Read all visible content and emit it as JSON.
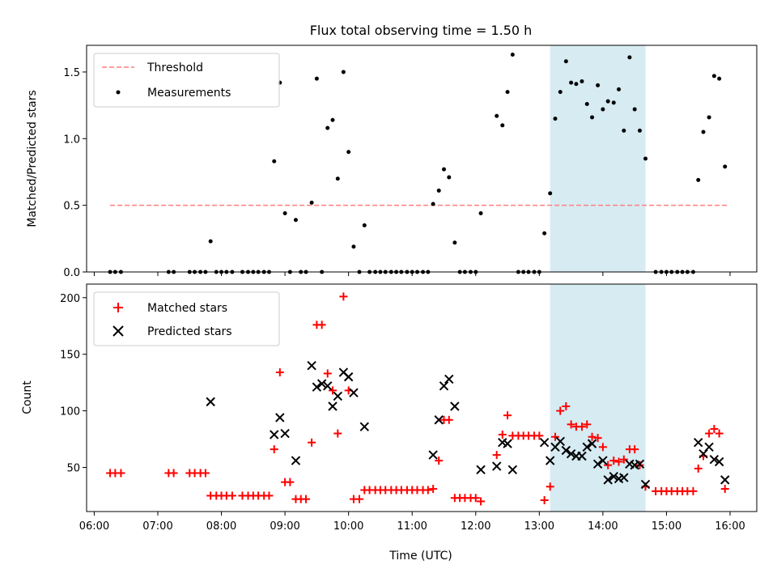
{
  "chart_data": [
    {
      "type": "scatter",
      "title": "Flux total observing time = 1.50 h",
      "ylabel": "Matched/Predicted stars",
      "xlabel": "",
      "x_unit": "hours_utc",
      "xlim": [
        5.88,
        16.42
      ],
      "ylim": [
        0,
        1.7
      ],
      "yticks": [
        0.0,
        0.5,
        1.0,
        1.5
      ],
      "ytick_labels": [
        "0.0",
        "0.5",
        "1.0",
        "1.5"
      ],
      "xticks": [
        6,
        7,
        8,
        9,
        10,
        11,
        12,
        13,
        14,
        15,
        16
      ],
      "xtick_labels": [
        "06:00",
        "07:00",
        "08:00",
        "09:00",
        "10:00",
        "11:00",
        "12:00",
        "13:00",
        "14:00",
        "15:00",
        "16:00"
      ],
      "show_xtick_labels": false,
      "highlight_span": [
        13.17,
        14.67
      ],
      "highlight_color": "#add8e6",
      "legend": {
        "placement": "upper-left",
        "entries": [
          "Threshold",
          "Measurements"
        ]
      },
      "series": [
        {
          "name": "Threshold",
          "style": "dashed-line",
          "color": "#ff7f7f",
          "x": [
            6.25,
            15.95
          ],
          "y": [
            0.5,
            0.5
          ]
        },
        {
          "name": "Measurements",
          "style": "dot",
          "color": "#000000",
          "x": [
            6.25,
            6.33,
            6.42,
            7.17,
            7.25,
            7.5,
            7.58,
            7.67,
            7.75,
            7.83,
            7.92,
            8.0,
            8.08,
            8.17,
            8.33,
            8.42,
            8.5,
            8.58,
            8.67,
            8.75,
            8.83,
            8.92,
            9.0,
            9.08,
            9.17,
            9.25,
            9.33,
            9.42,
            9.5,
            9.58,
            9.67,
            9.75,
            9.83,
            9.92,
            10.0,
            10.08,
            10.17,
            10.25,
            10.33,
            10.42,
            10.5,
            10.58,
            10.67,
            10.75,
            10.83,
            10.92,
            11.0,
            11.08,
            11.17,
            11.25,
            11.33,
            11.42,
            11.5,
            11.58,
            11.67,
            11.75,
            11.83,
            11.92,
            12.0,
            12.08,
            12.33,
            12.42,
            12.5,
            12.58,
            12.67,
            12.75,
            12.83,
            12.92,
            13.0,
            13.08,
            13.17,
            13.25,
            13.33,
            13.42,
            13.5,
            13.58,
            13.67,
            13.75,
            13.83,
            13.92,
            14.0,
            14.08,
            14.17,
            14.25,
            14.33,
            14.42,
            14.5,
            14.58,
            14.67,
            14.83,
            14.92,
            15.0,
            15.08,
            15.17,
            15.25,
            15.33,
            15.42,
            15.5,
            15.58,
            15.67,
            15.75,
            15.83,
            15.92
          ],
          "y": [
            0,
            0,
            0,
            0,
            0,
            0,
            0,
            0,
            0,
            0.23,
            0,
            0,
            0,
            0,
            0,
            0,
            0,
            0,
            0,
            0,
            0.83,
            1.42,
            0.44,
            0,
            0.39,
            0,
            0,
            0.52,
            1.45,
            0,
            1.08,
            1.14,
            0.7,
            1.5,
            0.9,
            0.19,
            0,
            0.35,
            0,
            0,
            0,
            0,
            0,
            0,
            0,
            0,
            0,
            0,
            0,
            0,
            0.51,
            0.61,
            0.77,
            0.71,
            0.22,
            0,
            0,
            0,
            0,
            0.44,
            1.17,
            1.1,
            1.35,
            1.63,
            0,
            0,
            0,
            0,
            0,
            0.29,
            0.59,
            1.15,
            1.35,
            1.58,
            1.42,
            1.41,
            1.43,
            1.26,
            1.16,
            1.4,
            1.22,
            1.28,
            1.27,
            1.37,
            1.06,
            1.61,
            1.22,
            1.06,
            0.85,
            0,
            0,
            0,
            0,
            0,
            0,
            0,
            0,
            0.69,
            1.05,
            1.16,
            1.47,
            1.45,
            0.79
          ]
        }
      ]
    },
    {
      "type": "scatter",
      "title": "",
      "ylabel": "Count",
      "xlabel": "Time (UTC)",
      "x_unit": "hours_utc",
      "xlim": [
        5.88,
        16.42
      ],
      "ylim": [
        11,
        212
      ],
      "yticks": [
        50,
        100,
        150,
        200
      ],
      "ytick_labels": [
        "50",
        "100",
        "150",
        "200"
      ],
      "xticks": [
        6,
        7,
        8,
        9,
        10,
        11,
        12,
        13,
        14,
        15,
        16
      ],
      "xtick_labels": [
        "06:00",
        "07:00",
        "08:00",
        "09:00",
        "10:00",
        "11:00",
        "12:00",
        "13:00",
        "14:00",
        "15:00",
        "16:00"
      ],
      "show_xtick_labels": true,
      "highlight_span": [
        13.17,
        14.67
      ],
      "highlight_color": "#add8e6",
      "legend": {
        "placement": "upper-left",
        "entries": [
          "Matched stars",
          "Predicted stars"
        ]
      },
      "series": [
        {
          "name": "Matched stars",
          "style": "plus",
          "color": "#ff0000",
          "x": [
            6.25,
            6.33,
            6.42,
            7.17,
            7.25,
            7.5,
            7.58,
            7.67,
            7.75,
            7.83,
            7.92,
            8.0,
            8.08,
            8.17,
            8.33,
            8.42,
            8.5,
            8.58,
            8.67,
            8.75,
            8.83,
            8.92,
            9.0,
            9.08,
            9.17,
            9.25,
            9.33,
            9.42,
            9.5,
            9.58,
            9.67,
            9.75,
            9.83,
            9.92,
            10.0,
            10.08,
            10.17,
            10.25,
            10.33,
            10.42,
            10.5,
            10.58,
            10.67,
            10.75,
            10.83,
            10.92,
            11.0,
            11.08,
            11.17,
            11.25,
            11.33,
            11.42,
            11.5,
            11.58,
            11.67,
            11.75,
            11.83,
            11.92,
            12.0,
            12.08,
            12.33,
            12.42,
            12.5,
            12.58,
            12.67,
            12.75,
            12.83,
            12.92,
            13.0,
            13.08,
            13.17,
            13.25,
            13.33,
            13.42,
            13.5,
            13.58,
            13.67,
            13.75,
            13.83,
            13.92,
            14.0,
            14.08,
            14.17,
            14.25,
            14.33,
            14.42,
            14.5,
            14.58,
            14.67,
            14.83,
            14.92,
            15.0,
            15.08,
            15.17,
            15.25,
            15.33,
            15.42,
            15.5,
            15.58,
            15.67,
            15.75,
            15.83,
            15.92
          ],
          "y": [
            45,
            45,
            45,
            45,
            45,
            45,
            45,
            45,
            45,
            25,
            25,
            25,
            25,
            25,
            25,
            25,
            25,
            25,
            25,
            25,
            66,
            134,
            37,
            37,
            22,
            22,
            22,
            72,
            176,
            176,
            133,
            118,
            80,
            201,
            118,
            22,
            22,
            30,
            30,
            30,
            30,
            30,
            30,
            30,
            30,
            30,
            30,
            30,
            30,
            30,
            31,
            56,
            92,
            92,
            23,
            23,
            23,
            23,
            23,
            20,
            61,
            79,
            96,
            78,
            78,
            78,
            78,
            78,
            78,
            21,
            33,
            77,
            100,
            104,
            88,
            86,
            86,
            88,
            77,
            76,
            68,
            52,
            56,
            55,
            57,
            66,
            66,
            52,
            33,
            29,
            29,
            29,
            29,
            29,
            29,
            29,
            29,
            49,
            60,
            80,
            84,
            80,
            31
          ]
        },
        {
          "name": "Predicted stars",
          "style": "x",
          "color": "#000000",
          "x": [
            7.83,
            8.83,
            8.92,
            9.0,
            9.17,
            9.42,
            9.5,
            9.58,
            9.67,
            9.75,
            9.83,
            9.92,
            10.0,
            10.08,
            10.25,
            11.33,
            11.42,
            11.5,
            11.58,
            11.67,
            12.08,
            12.33,
            12.42,
            12.5,
            12.58,
            13.08,
            13.17,
            13.25,
            13.33,
            13.42,
            13.5,
            13.58,
            13.67,
            13.75,
            13.83,
            13.92,
            14.0,
            14.08,
            14.17,
            14.25,
            14.33,
            14.42,
            14.5,
            14.58,
            14.67,
            15.5,
            15.58,
            15.67,
            15.75,
            15.83,
            15.92
          ],
          "y": [
            108,
            79,
            94,
            80,
            56,
            140,
            121,
            124,
            122,
            104,
            113,
            134,
            130,
            116,
            86,
            61,
            92,
            122,
            128,
            104,
            48,
            51,
            72,
            71,
            48,
            72,
            56,
            68,
            73,
            65,
            62,
            60,
            60,
            68,
            71,
            53,
            56,
            39,
            42,
            40,
            41,
            53,
            52,
            53,
            35,
            72,
            62,
            68,
            57,
            55,
            39
          ]
        }
      ]
    }
  ]
}
